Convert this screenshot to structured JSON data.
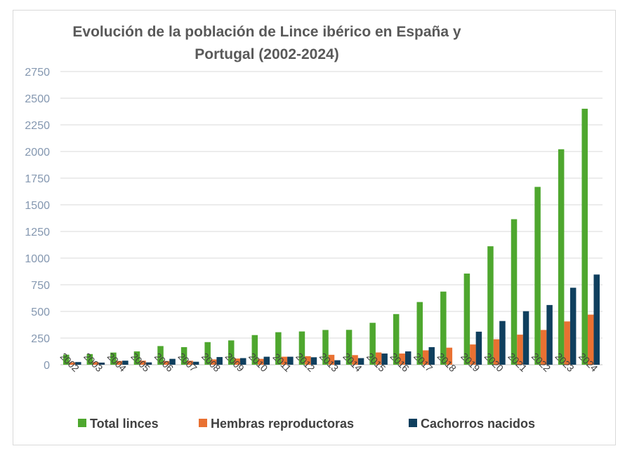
{
  "chart_data": {
    "type": "bar",
    "title": "Evolución de la población de Lince ibérico en España y Portugal (2002-2024)",
    "categories": [
      "2002",
      "2003",
      "2004",
      "2005",
      "2006",
      "2007",
      "2008",
      "2009",
      "2010",
      "2011",
      "2012",
      "2013",
      "2014",
      "2015",
      "2016",
      "2017",
      "2018",
      "2019",
      "2020",
      "2021",
      "2022",
      "2023",
      "2024"
    ],
    "series": [
      {
        "name": "Total linces",
        "color": "#4ea72e",
        "values": [
          94,
          100,
          114,
          125,
          175,
          165,
          212,
          228,
          278,
          305,
          312,
          326,
          327,
          393,
          475,
          588,
          686,
          855,
          1111,
          1365,
          1668,
          2021,
          2401
        ]
      },
      {
        "name": "Hembras reproductoras",
        "color": "#e97132",
        "values": [
          22,
          25,
          35,
          38,
          35,
          37,
          50,
          58,
          55,
          75,
          80,
          93,
          90,
          115,
          105,
          135,
          160,
          190,
          239,
          282,
          326,
          406,
          470
        ]
      },
      {
        "name": "Cachorros nacidos",
        "color": "#0f3f5e",
        "values": [
          25,
          20,
          38,
          22,
          55,
          28,
          72,
          62,
          75,
          75,
          70,
          42,
          62,
          105,
          125,
          165,
          0,
          310,
          410,
          502,
          560,
          722,
          846
        ]
      }
    ],
    "ylim": [
      0,
      2750
    ],
    "yticks": [
      "0",
      "250",
      "500",
      "750",
      "1000",
      "1250",
      "1500",
      "1750",
      "2000",
      "2250",
      "2500",
      "2750"
    ],
    "grid": true,
    "legend": "bottom",
    "xlabel": "",
    "ylabel": ""
  }
}
